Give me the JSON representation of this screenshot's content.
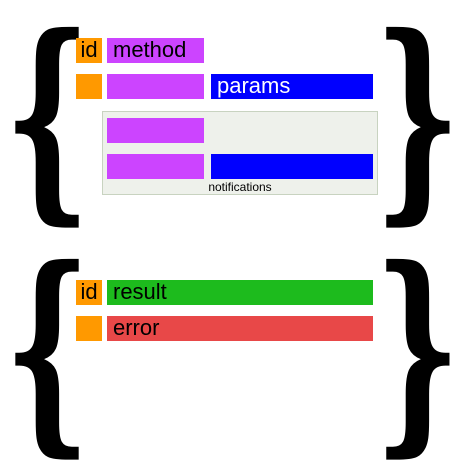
{
  "colors": {
    "id": "#ff9900",
    "method": "#cc44ff",
    "params": "#0000ff",
    "result": "#1dbb1d",
    "error": "#e84848",
    "notifications_bg": "#eef1eb",
    "brace": "#000000"
  },
  "request": {
    "brace_left": "{",
    "brace_right": "}",
    "id_label": "id",
    "method_label": "method",
    "params_label": "params",
    "notifications_label": "notifications"
  },
  "response": {
    "brace_left": "{",
    "brace_right": "}",
    "id_label": "id",
    "result_label": "result",
    "error_label": "error"
  }
}
